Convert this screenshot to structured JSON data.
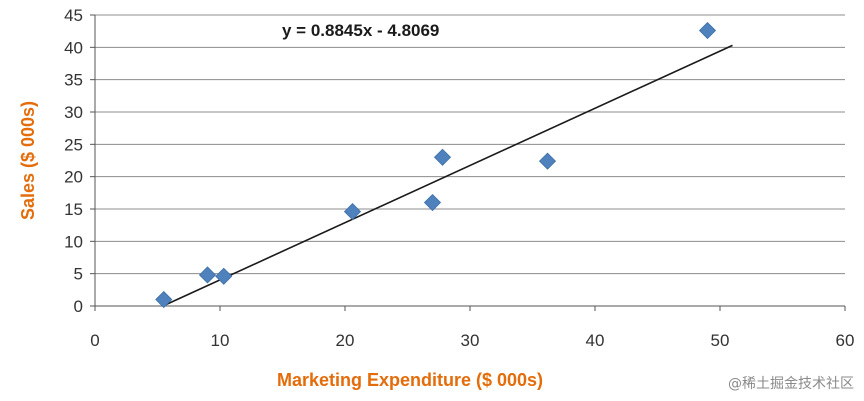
{
  "chart_data": {
    "type": "scatter",
    "title": "",
    "xlabel": "Marketing Expenditure ($ 000s)",
    "ylabel": "Sales ($ 000s)",
    "xlim": [
      0,
      60
    ],
    "ylim": [
      0,
      45
    ],
    "x_ticks": [
      "0",
      "10",
      "20",
      "30",
      "40",
      "50",
      "60"
    ],
    "y_ticks": [
      "0",
      "5",
      "10",
      "15",
      "20",
      "25",
      "30",
      "35",
      "40",
      "45"
    ],
    "grid": "horizontal",
    "series": [
      {
        "marker": "diamond",
        "color": "#4F81BD",
        "points": [
          {
            "x": 5.5,
            "y": 1.0
          },
          {
            "x": 9.0,
            "y": 4.8
          },
          {
            "x": 10.3,
            "y": 4.6
          },
          {
            "x": 20.6,
            "y": 14.6
          },
          {
            "x": 27.0,
            "y": 16.0
          },
          {
            "x": 27.8,
            "y": 23.0
          },
          {
            "x": 36.2,
            "y": 22.4
          },
          {
            "x": 49.0,
            "y": 42.6
          }
        ]
      }
    ],
    "trendline": {
      "type": "linear",
      "slope": 0.8845,
      "intercept": -4.8069,
      "x_range": [
        5.5,
        51
      ],
      "equation_label": "y = 0.8845x - 4.8069",
      "color": "#1a1a1a"
    },
    "colors": {
      "axis_title": "#E46C0A",
      "gridline": "#8c8c8c",
      "axis": "#555555"
    }
  },
  "watermark": "@稀土掘金技术社区"
}
